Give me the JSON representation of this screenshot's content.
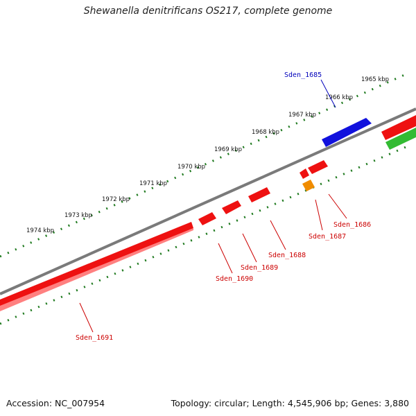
{
  "title": "Shewanella denitrificans OS217, complete genome",
  "footer": {
    "accession": "Accession: NC_007954",
    "summary": "Topology: circular; Length: 4,545,906 bp; Genes: 3,880"
  },
  "colors": {
    "backbone": "#7a7a7a",
    "ticks": "#1f7a1f",
    "gene_red": "#ee1111",
    "gene_blue": "#1111dd",
    "gene_orange": "#f08c00",
    "gene_green": "#33bb33",
    "label_red": "#cc0000",
    "label_blue": "#0000bb"
  },
  "kbp_ticks": [
    "1965 kbp",
    "1966 kbp",
    "1967 kbp",
    "1968 kbp",
    "1969 kbp",
    "1970 kbp",
    "1971 kbp",
    "1972 kbp",
    "1973 kbp",
    "1974 kbp"
  ],
  "genes": [
    {
      "label": "Sden_1685",
      "color": "blue",
      "strand": "outer"
    },
    {
      "label": "Sden_1686",
      "color": "red",
      "strand": "inner"
    },
    {
      "label": "Sden_1687",
      "color": "orange",
      "strand": "inner"
    },
    {
      "label": "Sden_1688",
      "color": "red",
      "strand": "inner"
    },
    {
      "label": "Sden_1689",
      "color": "red",
      "strand": "inner"
    },
    {
      "label": "Sden_1690",
      "color": "red",
      "strand": "inner"
    },
    {
      "label": "Sden_1691",
      "color": "red",
      "strand": "inner"
    }
  ],
  "extra_features": [
    {
      "color": "red",
      "strand": "inner",
      "labelled": false
    },
    {
      "color": "green",
      "strand": "inner",
      "labelled": false
    }
  ]
}
